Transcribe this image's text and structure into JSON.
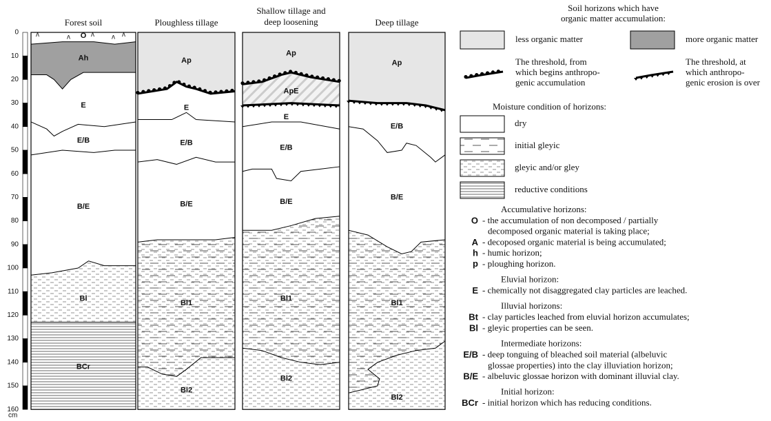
{
  "scale": {
    "ticks": [
      0,
      10,
      20,
      30,
      40,
      50,
      60,
      70,
      80,
      90,
      100,
      110,
      120,
      130,
      140,
      150,
      160
    ],
    "unit": "cm"
  },
  "profiles": [
    {
      "title": [
        "Forest soil"
      ],
      "horizons": [
        "O",
        "Ah",
        "E",
        "E/B",
        "B/E",
        "Bl",
        "BCr"
      ]
    },
    {
      "title": [
        "Ploughless tillage"
      ],
      "horizons": [
        "Ap",
        "E",
        "E/B",
        "B/E",
        "Bl1",
        "Bl2"
      ]
    },
    {
      "title": [
        "Shallow tillage and",
        "deep loosening"
      ],
      "horizons": [
        "Ap",
        "ApE",
        "E",
        "E/B",
        "B/E",
        "Bl1",
        "Bl2"
      ]
    },
    {
      "title": [
        "Deep tillage"
      ],
      "horizons": [
        "Ap",
        "E/B",
        "B/E",
        "Bl1",
        "Bl2"
      ]
    }
  ],
  "legend": {
    "organic_title": [
      "Soil horizons which have",
      "organic matter accumulation:"
    ],
    "organic_items": [
      "less organic matter",
      "more organic matter"
    ],
    "thresholds": [
      [
        "The threshold, from",
        "which begins anthropo-",
        "genic accumulation"
      ],
      [
        "The threshold, at",
        "which anthropo-",
        "genic erosion is over"
      ]
    ],
    "moisture_title": "Moisture condition of horizons:",
    "moisture_items": [
      "dry",
      "initial gleyic",
      "gleyic and/or gley",
      "reductive conditions"
    ],
    "groups": [
      {
        "title": "Accumulative horizons:",
        "rows": [
          {
            "code": "O",
            "lines": [
              "- the accumulation of non decomposed / partially",
              "decomposed organic material is taking place;"
            ]
          },
          {
            "code": "A",
            "lines": [
              "- decoposed organic material is being accumulated;"
            ]
          },
          {
            "code": "h",
            "lines": [
              "- humic horizon;"
            ]
          },
          {
            "code": "p",
            "lines": [
              "- ploughing horizon."
            ]
          }
        ]
      },
      {
        "title": "Eluvial horizon:",
        "rows": [
          {
            "code": "E",
            "lines": [
              "- chemically not disaggregated clay particles are leached."
            ]
          }
        ]
      },
      {
        "title": "Illuvial horizons:",
        "rows": [
          {
            "code": "Bt",
            "lines": [
              "- clay particles leached from eluvial horizon accumulates;"
            ]
          },
          {
            "code": "Bl",
            "lines": [
              "- gleyic properties can be seen."
            ]
          }
        ]
      },
      {
        "title": "Intermediate horizons:",
        "rows": [
          {
            "code": "E/B",
            "lines": [
              "- deep tonguing of bleached soil material (albeluvic",
              "glossae properties) into the clay illuviation  horizon;"
            ]
          },
          {
            "code": "B/E",
            "lines": [
              "- albeluvic glossae horizon with dominant illuvial clay."
            ]
          }
        ]
      },
      {
        "title": "Initial horizon:",
        "rows": [
          {
            "code": "BCr",
            "lines": [
              "- initial horizon which has reducing conditions."
            ]
          }
        ]
      }
    ]
  }
}
